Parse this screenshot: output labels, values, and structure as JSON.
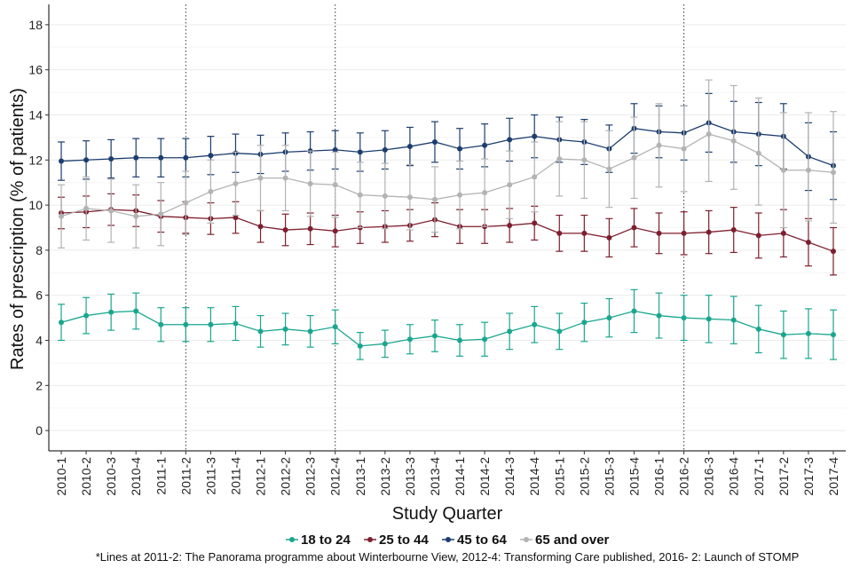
{
  "chart_data": {
    "type": "line",
    "xlabel": "Study Quarter",
    "ylabel": "Rates of prescription (% of patients)",
    "ylim": [
      -0.9,
      18.9
    ],
    "yticks": [
      0,
      2,
      4,
      6,
      8,
      10,
      12,
      14,
      16,
      18
    ],
    "grid": true,
    "legend_position": "bottom",
    "categories": [
      "2010-1",
      "2010-2",
      "2010-3",
      "2010-4",
      "2011-1",
      "2011-2",
      "2011-3",
      "2011-4",
      "2012-1",
      "2012-2",
      "2012-3",
      "2012-4",
      "2013-1",
      "2013-2",
      "2013-3",
      "2013-4",
      "2014-1",
      "2014-2",
      "2014-3",
      "2014-4",
      "2015-1",
      "2015-2",
      "2015-3",
      "2015-4",
      "2016-1",
      "2016-2",
      "2016-3",
      "2016-4",
      "2017-1",
      "2017-2",
      "2017-3",
      "2017-4"
    ],
    "vlines": [
      "2011-2",
      "2012-4",
      "2016-2"
    ],
    "series": [
      {
        "name": "18 to 24",
        "color": "#1aa68e",
        "values": [
          4.8,
          5.1,
          5.25,
          5.3,
          4.7,
          4.7,
          4.7,
          4.75,
          4.4,
          4.5,
          4.4,
          4.6,
          3.75,
          3.85,
          4.05,
          4.2,
          4.0,
          4.05,
          4.4,
          4.7,
          4.4,
          4.8,
          5.0,
          5.3,
          5.1,
          5.0,
          4.95,
          4.9,
          4.5,
          4.25,
          4.3,
          4.25
        ],
        "lower": [
          4.0,
          4.3,
          4.45,
          4.5,
          3.95,
          3.95,
          3.95,
          4.0,
          3.7,
          3.8,
          3.7,
          3.85,
          3.15,
          3.25,
          3.4,
          3.5,
          3.3,
          3.3,
          3.6,
          3.9,
          3.6,
          3.95,
          4.15,
          4.35,
          4.1,
          4.0,
          3.9,
          3.85,
          3.45,
          3.2,
          3.2,
          3.15
        ],
        "upper": [
          5.6,
          5.9,
          6.05,
          6.1,
          5.45,
          5.45,
          5.45,
          5.5,
          5.1,
          5.2,
          5.1,
          5.35,
          4.35,
          4.45,
          4.7,
          4.9,
          4.7,
          4.8,
          5.2,
          5.5,
          5.2,
          5.65,
          5.85,
          6.25,
          6.1,
          6.0,
          6.0,
          5.95,
          5.55,
          5.3,
          5.4,
          5.35
        ]
      },
      {
        "name": "25 to 44",
        "color": "#7d1f2e",
        "values": [
          9.65,
          9.7,
          9.8,
          9.75,
          9.5,
          9.45,
          9.4,
          9.45,
          9.05,
          8.9,
          8.95,
          8.85,
          9.0,
          9.05,
          9.1,
          9.35,
          9.05,
          9.05,
          9.1,
          9.2,
          8.75,
          8.75,
          8.55,
          9.0,
          8.75,
          8.75,
          8.8,
          8.9,
          8.65,
          8.75,
          8.35,
          7.95
        ],
        "lower": [
          8.95,
          9.0,
          9.1,
          9.05,
          8.8,
          8.75,
          8.7,
          8.75,
          8.35,
          8.2,
          8.25,
          8.15,
          8.3,
          8.35,
          8.4,
          8.6,
          8.3,
          8.3,
          8.35,
          8.45,
          7.95,
          7.95,
          7.7,
          8.15,
          7.85,
          7.8,
          7.85,
          7.9,
          7.65,
          7.7,
          7.3,
          6.9
        ],
        "upper": [
          10.35,
          10.4,
          10.5,
          10.45,
          10.2,
          10.15,
          10.1,
          10.15,
          9.75,
          9.6,
          9.65,
          9.55,
          9.7,
          9.75,
          9.8,
          10.1,
          9.8,
          9.8,
          9.85,
          9.95,
          9.55,
          9.55,
          9.4,
          9.85,
          9.65,
          9.7,
          9.75,
          9.9,
          9.65,
          9.8,
          9.4,
          9.0
        ]
      },
      {
        "name": "45 to 64",
        "color": "#1c3d6e",
        "values": [
          11.95,
          12.0,
          12.05,
          12.1,
          12.1,
          12.1,
          12.2,
          12.3,
          12.25,
          12.35,
          12.4,
          12.45,
          12.35,
          12.45,
          12.6,
          12.8,
          12.5,
          12.65,
          12.9,
          13.05,
          12.9,
          12.8,
          12.5,
          13.4,
          13.25,
          13.2,
          13.65,
          13.25,
          13.15,
          13.05,
          12.15,
          11.75
        ],
        "lower": [
          11.1,
          11.15,
          11.2,
          11.25,
          11.25,
          11.25,
          11.35,
          11.45,
          11.4,
          11.5,
          11.55,
          11.6,
          11.5,
          11.6,
          11.75,
          11.9,
          11.6,
          11.7,
          11.95,
          12.1,
          11.9,
          11.8,
          11.45,
          12.3,
          12.1,
          12.0,
          12.35,
          11.9,
          11.75,
          11.6,
          10.65,
          10.25
        ],
        "upper": [
          12.8,
          12.85,
          12.9,
          12.95,
          12.95,
          12.95,
          13.05,
          13.15,
          13.1,
          13.2,
          13.25,
          13.3,
          13.2,
          13.3,
          13.45,
          13.7,
          13.4,
          13.6,
          13.85,
          14.0,
          13.9,
          13.8,
          13.55,
          14.5,
          14.4,
          14.4,
          14.95,
          14.6,
          14.55,
          14.5,
          13.65,
          13.25
        ]
      },
      {
        "name": "65 and over",
        "color": "#b3b3b3",
        "values": [
          9.5,
          9.85,
          9.75,
          9.5,
          9.6,
          10.1,
          10.6,
          10.95,
          11.2,
          11.2,
          10.95,
          10.9,
          10.45,
          10.4,
          10.35,
          10.25,
          10.45,
          10.55,
          10.9,
          11.25,
          12.05,
          12.0,
          11.6,
          12.1,
          12.65,
          12.5,
          13.15,
          12.85,
          12.3,
          11.55,
          11.55,
          11.45
        ],
        "lower": [
          8.1,
          8.45,
          8.35,
          8.1,
          8.2,
          8.7,
          9.2,
          9.55,
          9.75,
          9.75,
          9.5,
          9.45,
          9.0,
          8.95,
          8.9,
          8.8,
          8.95,
          9.05,
          9.4,
          9.7,
          10.4,
          10.3,
          9.9,
          10.3,
          10.8,
          10.6,
          11.05,
          10.7,
          10.0,
          9.0,
          9.3,
          9.2
        ],
        "upper": [
          10.9,
          11.25,
          11.15,
          10.9,
          11.0,
          11.5,
          12.0,
          12.35,
          12.65,
          12.65,
          12.4,
          12.35,
          11.9,
          11.85,
          11.8,
          11.7,
          11.95,
          12.05,
          12.4,
          12.8,
          13.7,
          13.7,
          13.3,
          13.9,
          14.5,
          14.4,
          15.55,
          15.3,
          14.75,
          14.1,
          14.1,
          14.15
        ]
      }
    ],
    "footnote": "*Lines at 2011-2: The Panorama programme about Winterbourne View, 2012-4: Transforming Care published, 2016- 2: Launch of STOMP"
  }
}
